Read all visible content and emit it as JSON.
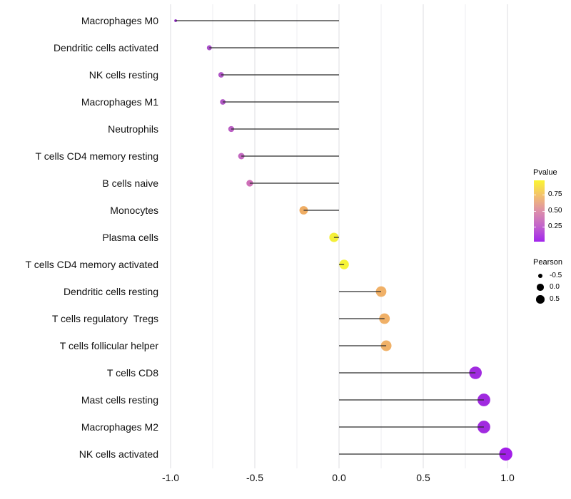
{
  "chart_data": {
    "type": "scatter",
    "variant": "lollipop",
    "title": "",
    "xlabel": "",
    "ylabel": "",
    "xlim": [
      -1.1,
      1.05
    ],
    "x_ticks": [
      -1.0,
      -0.5,
      0.0,
      0.5,
      1.0
    ],
    "x_minor_grid_step": 0.25,
    "grid": "vertical-only",
    "baseline_x": 0.0,
    "legend_position": "right",
    "points": [
      {
        "label": "Macrophages M0",
        "pearson": -0.97,
        "color": "#8E24C4"
      },
      {
        "label": "Dendritic cells activated",
        "pearson": -0.77,
        "color": "#A94FC9"
      },
      {
        "label": "NK cells resting",
        "pearson": -0.7,
        "color": "#B056C7"
      },
      {
        "label": "Macrophages M1",
        "pearson": -0.69,
        "color": "#B158C6"
      },
      {
        "label": "Neutrophils",
        "pearson": -0.64,
        "color": "#BB60C4"
      },
      {
        "label": "T cells CD4 memory resting",
        "pearson": -0.58,
        "color": "#C368C0"
      },
      {
        "label": "B cells naive",
        "pearson": -0.53,
        "color": "#CE6FB8"
      },
      {
        "label": "Monocytes",
        "pearson": -0.21,
        "color": "#EFAD64"
      },
      {
        "label": "Plasma cells",
        "pearson": -0.03,
        "color": "#F4EF39"
      },
      {
        "label": "T cells CD4 memory activated",
        "pearson": 0.03,
        "color": "#F6F436"
      },
      {
        "label": "Dendritic cells resting",
        "pearson": 0.25,
        "color": "#F0B067"
      },
      {
        "label": "T cells regulatory  Tregs",
        "pearson": 0.27,
        "color": "#F0B067"
      },
      {
        "label": "T cells follicular helper",
        "pearson": 0.28,
        "color": "#F0B168"
      },
      {
        "label": "T cells CD8",
        "pearson": 0.81,
        "color": "#A12BE0"
      },
      {
        "label": "Mast cells resting",
        "pearson": 0.86,
        "color": "#A02AE0"
      },
      {
        "label": "Macrophages M2",
        "pearson": 0.86,
        "color": "#A12BE0"
      },
      {
        "label": "NK cells activated",
        "pearson": 0.99,
        "color": "#A21FE8"
      }
    ]
  },
  "axis": {
    "x_tick_labels": [
      "-1.0",
      "-0.5",
      "0.0",
      "0.5",
      "1.0"
    ]
  },
  "legends": {
    "pvalue": {
      "title": "Pvalue",
      "tick_labels": [
        "0.75",
        "0.50",
        "0.25"
      ],
      "gradient_stops_top_to_bottom": [
        "#FBF531",
        "#F3C06E",
        "#DD8FA9",
        "#C263CC",
        "#A226EC"
      ]
    },
    "pearson": {
      "title": "Pearson",
      "items": [
        {
          "label": "-0.5"
        },
        {
          "label": "0.0"
        },
        {
          "label": "0.5"
        }
      ],
      "dot_color": "#000000"
    }
  },
  "style": {
    "stem_color": "#2B2B2B",
    "grid_major_color": "#E9E9EB",
    "grid_minor_color": "#F3F3F5",
    "text_color": "#111111",
    "background": "#FFFFFF"
  }
}
